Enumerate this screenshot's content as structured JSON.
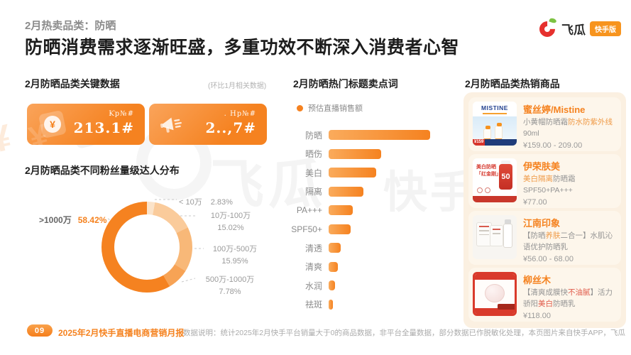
{
  "header": {
    "kicker": "2月热卖品类：防晒",
    "title": "防晒消费需求逐渐旺盛，多重功效不断深入消费者心智"
  },
  "logo": {
    "brand": "飞瓜",
    "badge": "快手版"
  },
  "key_data": {
    "title": "2月防晒品类关键数据",
    "note": "(环比1月相关数据)",
    "cards": [
      {
        "icon": "yuan-receipt-icon",
        "icon_glyph": "¥",
        "label": "Ƙp№#",
        "value": "213.1#"
      },
      {
        "icon": "megaphone-icon",
        "label": ". Hp№#",
        "value": "2..,7#"
      }
    ]
  },
  "fans_distribution": {
    "title": "2月防晒品类不同粉丝量级达人分布"
  },
  "keywords": {
    "title": "2月防晒热门标题卖点词",
    "legend": "预估直播销售额"
  },
  "products": {
    "title": "2月防晒品类热销商品",
    "items": [
      {
        "brand": "蜜丝婷/Mistine",
        "desc": [
          {
            "t": "小黄帽防晒霜",
            "hl": false
          },
          {
            "t": "防水防紫外线",
            "hl": true
          },
          {
            "t": "90ml",
            "hl": false
          }
        ],
        "price": "¥159.00 - 209.00",
        "thumb": {
          "brand": "MISTINE",
          "price_tag": "¥159"
        }
      },
      {
        "brand": "伊荣肤美",
        "desc": [
          {
            "t": "美白隔离",
            "hl": true
          },
          {
            "t": "防晒霜SPF50+PA+++",
            "hl": false
          }
        ],
        "price": "¥77.00",
        "thumb": {
          "label_line1": "美白防晒",
          "label_line2": "「红金刚」",
          "badge": "50"
        }
      },
      {
        "brand": "江南印象",
        "desc": [
          {
            "t": "【防晒",
            "hl": false
          },
          {
            "t": "养肤",
            "hl": true
          },
          {
            "t": "二合一】水肌沁语优护防晒乳",
            "hl": false
          }
        ],
        "price": "¥56.00 - 68.00",
        "thumb": {}
      },
      {
        "brand": "柳丝木",
        "desc": [
          {
            "t": "【清爽成膜快",
            "hl": false
          },
          {
            "t": "不油腻",
            "hl": true,
            "style": "red"
          },
          {
            "t": "】活力骄阳",
            "hl": false
          },
          {
            "t": "美白",
            "hl": true,
            "style": "red"
          },
          {
            "t": "防晒乳",
            "hl": false
          }
        ],
        "price": "¥118.00",
        "thumb": {}
      }
    ]
  },
  "footer": {
    "page": "09",
    "report": "2025年2月快手直播电商营销月报",
    "note": "数据说明：统计2025年2月快手平台销量大于0的商品数据，非平台全量数据，部分数据已作脱敏化处理，本页图片来自快手APP，飞瓜"
  },
  "watermark": {
    "text1": "飞瓜",
    "text2": "快手"
  },
  "colors": {
    "accent": "#F58220",
    "accent_light": "#FAA54F",
    "panel_cream": "#FBF0E1",
    "highlight_orange": "#EF9A47",
    "highlight_red": "#E05A4A"
  },
  "chart_data": [
    {
      "type": "pie",
      "subtype": "donut",
      "title": "2月防晒品类不同粉丝量级达人分布",
      "labels": [
        "< 10万",
        "10万-100万",
        "100万-500万",
        "500万-1000万",
        ">1000万"
      ],
      "values": [
        2.83,
        15.02,
        15.95,
        7.78,
        58.42
      ],
      "unit": "%",
      "colors": [
        "#FBE3C9",
        "#FACB9B",
        "#F8B878",
        "#F7A355",
        "#F58220"
      ],
      "highlight_index": 4,
      "start_angle": "top",
      "direction": "clockwise"
    },
    {
      "type": "bar",
      "orientation": "horizontal",
      "title": "2月防晒热门标题卖点词",
      "legend": [
        "预估直播销售额"
      ],
      "categories": [
        "防晒",
        "晒伤",
        "美白",
        "隔离",
        "PA+++",
        "SPF50+",
        "清透",
        "清爽",
        "水润",
        "祛斑"
      ],
      "values_relative": [
        100,
        52,
        47,
        34,
        24,
        22,
        12,
        9,
        6,
        4
      ],
      "value_labels_shown": false,
      "bar_color": "#F58220"
    }
  ]
}
